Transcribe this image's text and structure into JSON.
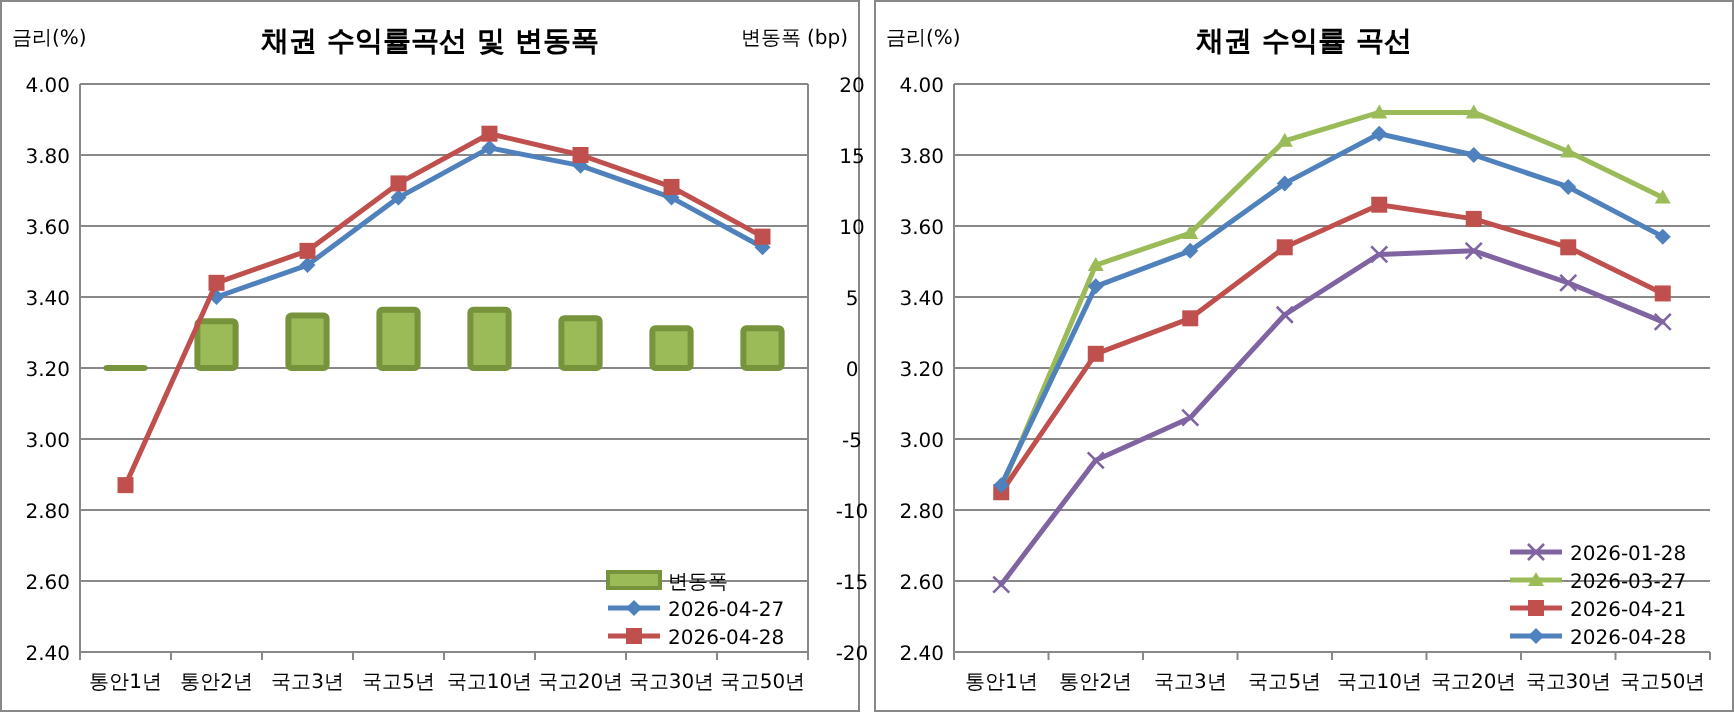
{
  "chart_data": [
    {
      "type": "line",
      "title": "채권 수익률곡선 및 변동폭",
      "ylabel": "금리(%)",
      "y2label": "변동폭 (bp)",
      "categories": [
        "통안1년",
        "통안2년",
        "국고3년",
        "국고5년",
        "국고10년",
        "국고20년",
        "국고30년",
        "국고50년"
      ],
      "series": [
        {
          "name": "변동폭",
          "type": "bar",
          "axis": "y2",
          "color": "#9bbb59",
          "values": [
            0,
            3.3,
            3.7,
            4.1,
            4.1,
            3.5,
            2.8,
            2.8
          ]
        },
        {
          "name": "2026-04-27",
          "marker": "diamond",
          "color": "#4f81bd",
          "values": [
            null,
            3.4,
            3.49,
            3.68,
            3.82,
            3.77,
            3.68,
            3.54
          ]
        },
        {
          "name": "2026-04-28",
          "marker": "square",
          "color": "#c0504d",
          "values": [
            2.87,
            3.44,
            3.53,
            3.72,
            3.86,
            3.8,
            3.71,
            3.57
          ]
        }
      ],
      "ylim": [
        2.4,
        4.0
      ],
      "yticks": [
        {
          "value": 2.4,
          "label": "2.40"
        },
        {
          "value": 2.6,
          "label": "2.60"
        },
        {
          "value": 2.8,
          "label": "2.80"
        },
        {
          "value": 3.0,
          "label": "3.00"
        },
        {
          "value": 3.2,
          "label": "3.20"
        },
        {
          "value": 3.4,
          "label": "3.40"
        },
        {
          "value": 3.6,
          "label": "3.60"
        },
        {
          "value": 3.8,
          "label": "3.80"
        },
        {
          "value": 4.0,
          "label": "4.00"
        }
      ],
      "y2lim": [
        -20,
        20
      ],
      "y2ticks": [
        -20,
        -15,
        -10,
        -5,
        0,
        5,
        10,
        15,
        20
      ],
      "grid": "y",
      "legend": "bottom right"
    },
    {
      "type": "line",
      "title": "채권 수익률 곡선",
      "ylabel": "금리(%)",
      "categories": [
        "통안1년",
        "통안2년",
        "국고3년",
        "국고5년",
        "국고10년",
        "국고20년",
        "국고30년",
        "국고50년"
      ],
      "series": [
        {
          "name": "2026-01-28",
          "marker": "cross",
          "color": "#8064a2",
          "values": [
            2.59,
            2.94,
            3.06,
            3.35,
            3.52,
            3.53,
            3.44,
            3.33
          ]
        },
        {
          "name": "2026-03-27",
          "marker": "triangle",
          "color": "#9bbb59",
          "values": [
            2.86,
            3.49,
            3.58,
            3.84,
            3.92,
            3.92,
            3.81,
            3.68
          ]
        },
        {
          "name": "2026-04-21",
          "marker": "square",
          "color": "#c0504d",
          "values": [
            2.85,
            3.24,
            3.34,
            3.54,
            3.66,
            3.62,
            3.54,
            3.41
          ]
        },
        {
          "name": "2026-04-28",
          "marker": "diamond",
          "color": "#4f81bd",
          "values": [
            2.87,
            3.43,
            3.53,
            3.72,
            3.86,
            3.8,
            3.71,
            3.57
          ]
        }
      ],
      "ylim": [
        2.4,
        4.0
      ],
      "yticks": [
        {
          "value": 2.4,
          "label": "2.40"
        },
        {
          "value": 2.6,
          "label": "2.60"
        },
        {
          "value": 2.8,
          "label": "2.80"
        },
        {
          "value": 3.0,
          "label": "3.00"
        },
        {
          "value": 3.2,
          "label": "3.20"
        },
        {
          "value": 3.4,
          "label": "3.40"
        },
        {
          "value": 3.6,
          "label": "3.60"
        },
        {
          "value": 3.8,
          "label": "3.80"
        },
        {
          "value": 4.0,
          "label": "4.00"
        }
      ],
      "grid": "y",
      "legend": "bottom right"
    }
  ]
}
